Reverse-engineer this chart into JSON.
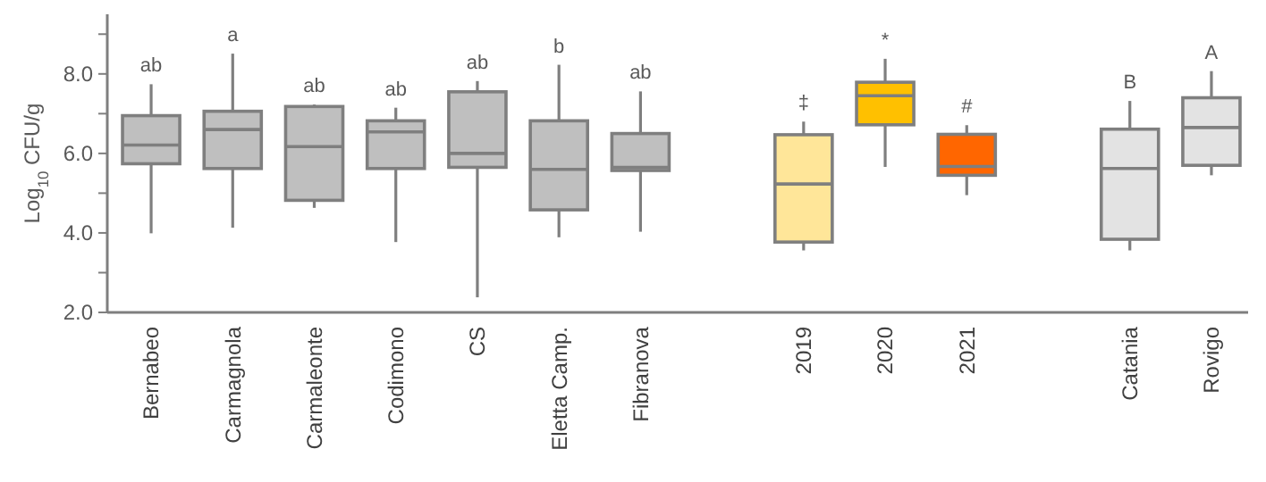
{
  "chart_data": {
    "type": "box",
    "ylabel": "Log$_{10}$ CFU/g",
    "categories": [
      "Bernabeo",
      "Carmagnola",
      "Carmaleonte",
      "Codimono",
      "CS",
      "Eletta Camp.",
      "Fibranova",
      null,
      "2019",
      "2020",
      "2021",
      null,
      "Catania",
      "Rovigo"
    ],
    "boxes": [
      {
        "low": 3.99,
        "q1": 5.74,
        "median": 6.21,
        "q3": 6.95,
        "high": 7.74
      },
      {
        "low": 4.13,
        "q1": 5.62,
        "median": 6.6,
        "q3": 7.06,
        "high": 8.51
      },
      {
        "low": 4.63,
        "q1": 4.82,
        "median": 6.17,
        "q3": 7.18,
        "high": 7.23
      },
      {
        "low": 3.77,
        "q1": 5.62,
        "median": 6.54,
        "q3": 6.82,
        "high": 7.15
      },
      {
        "low": 2.38,
        "q1": 5.65,
        "median": 6.0,
        "q3": 7.55,
        "high": 7.82
      },
      {
        "low": 3.89,
        "q1": 4.58,
        "median": 5.6,
        "q3": 6.82,
        "high": 8.23
      },
      {
        "low": 4.03,
        "q1": 5.57,
        "median": 5.65,
        "q3": 6.5,
        "high": 7.56
      },
      null,
      {
        "low": 3.56,
        "q1": 3.77,
        "median": 5.23,
        "q3": 6.47,
        "high": 6.8
      },
      {
        "low": 5.66,
        "q1": 6.72,
        "median": 7.45,
        "q3": 7.79,
        "high": 8.38
      },
      {
        "low": 4.95,
        "q1": 5.45,
        "median": 5.67,
        "q3": 6.48,
        "high": 6.71
      },
      null,
      {
        "low": 3.56,
        "q1": 3.84,
        "median": 5.62,
        "q3": 6.61,
        "high": 7.32
      },
      {
        "low": 5.45,
        "q1": 5.7,
        "median": 6.65,
        "q3": 7.4,
        "high": 8.07
      }
    ],
    "colors": [
      "#bfbfbf",
      "#bfbfbf",
      "#bfbfbf",
      "#bfbfbf",
      "#bfbfbf",
      "#bfbfbf",
      "#bfbfbf",
      null,
      "#ffe699",
      "#ffc000",
      "#ff6600",
      null,
      "#e3e3e3",
      "#e3e3e3"
    ],
    "ylim": [
      2,
      9.5
    ],
    "yticks": [
      {
        "value": 2,
        "label": "2.0"
      },
      {
        "value": 3,
        "label": null
      },
      {
        "value": 4,
        "label": "4.0"
      },
      {
        "value": 5,
        "label": null
      },
      {
        "value": 6,
        "label": "6.0"
      },
      {
        "value": 7,
        "label": null
      },
      {
        "value": 8,
        "label": "8.0"
      },
      {
        "value": 9,
        "label": null
      }
    ],
    "annotations": [
      {
        "text": "ab",
        "x": "Bernabeo",
        "y": 7.74
      },
      {
        "text": "a",
        "x": "Carmagnola",
        "y": 8.51
      },
      {
        "text": "ab",
        "x": "Carmaleonte",
        "y": 7.23
      },
      {
        "text": "ab",
        "x": "Codimono",
        "y": 7.15
      },
      {
        "text": "ab",
        "x": "CS",
        "y": 7.82
      },
      {
        "text": "b",
        "x": "Eletta Camp.",
        "y": 8.23
      },
      {
        "text": "ab",
        "x": "Fibranova",
        "y": 7.56
      },
      {
        "text": "‡",
        "x": "2019",
        "y": 6.8
      },
      {
        "text": "*",
        "x": "2020",
        "y": 8.38
      },
      {
        "text": "#",
        "x": "2021",
        "y": 6.71
      },
      {
        "text": "B",
        "x": "Catania",
        "y": 7.32
      },
      {
        "text": "A",
        "x": "Rovigo",
        "y": 8.07
      }
    ]
  }
}
